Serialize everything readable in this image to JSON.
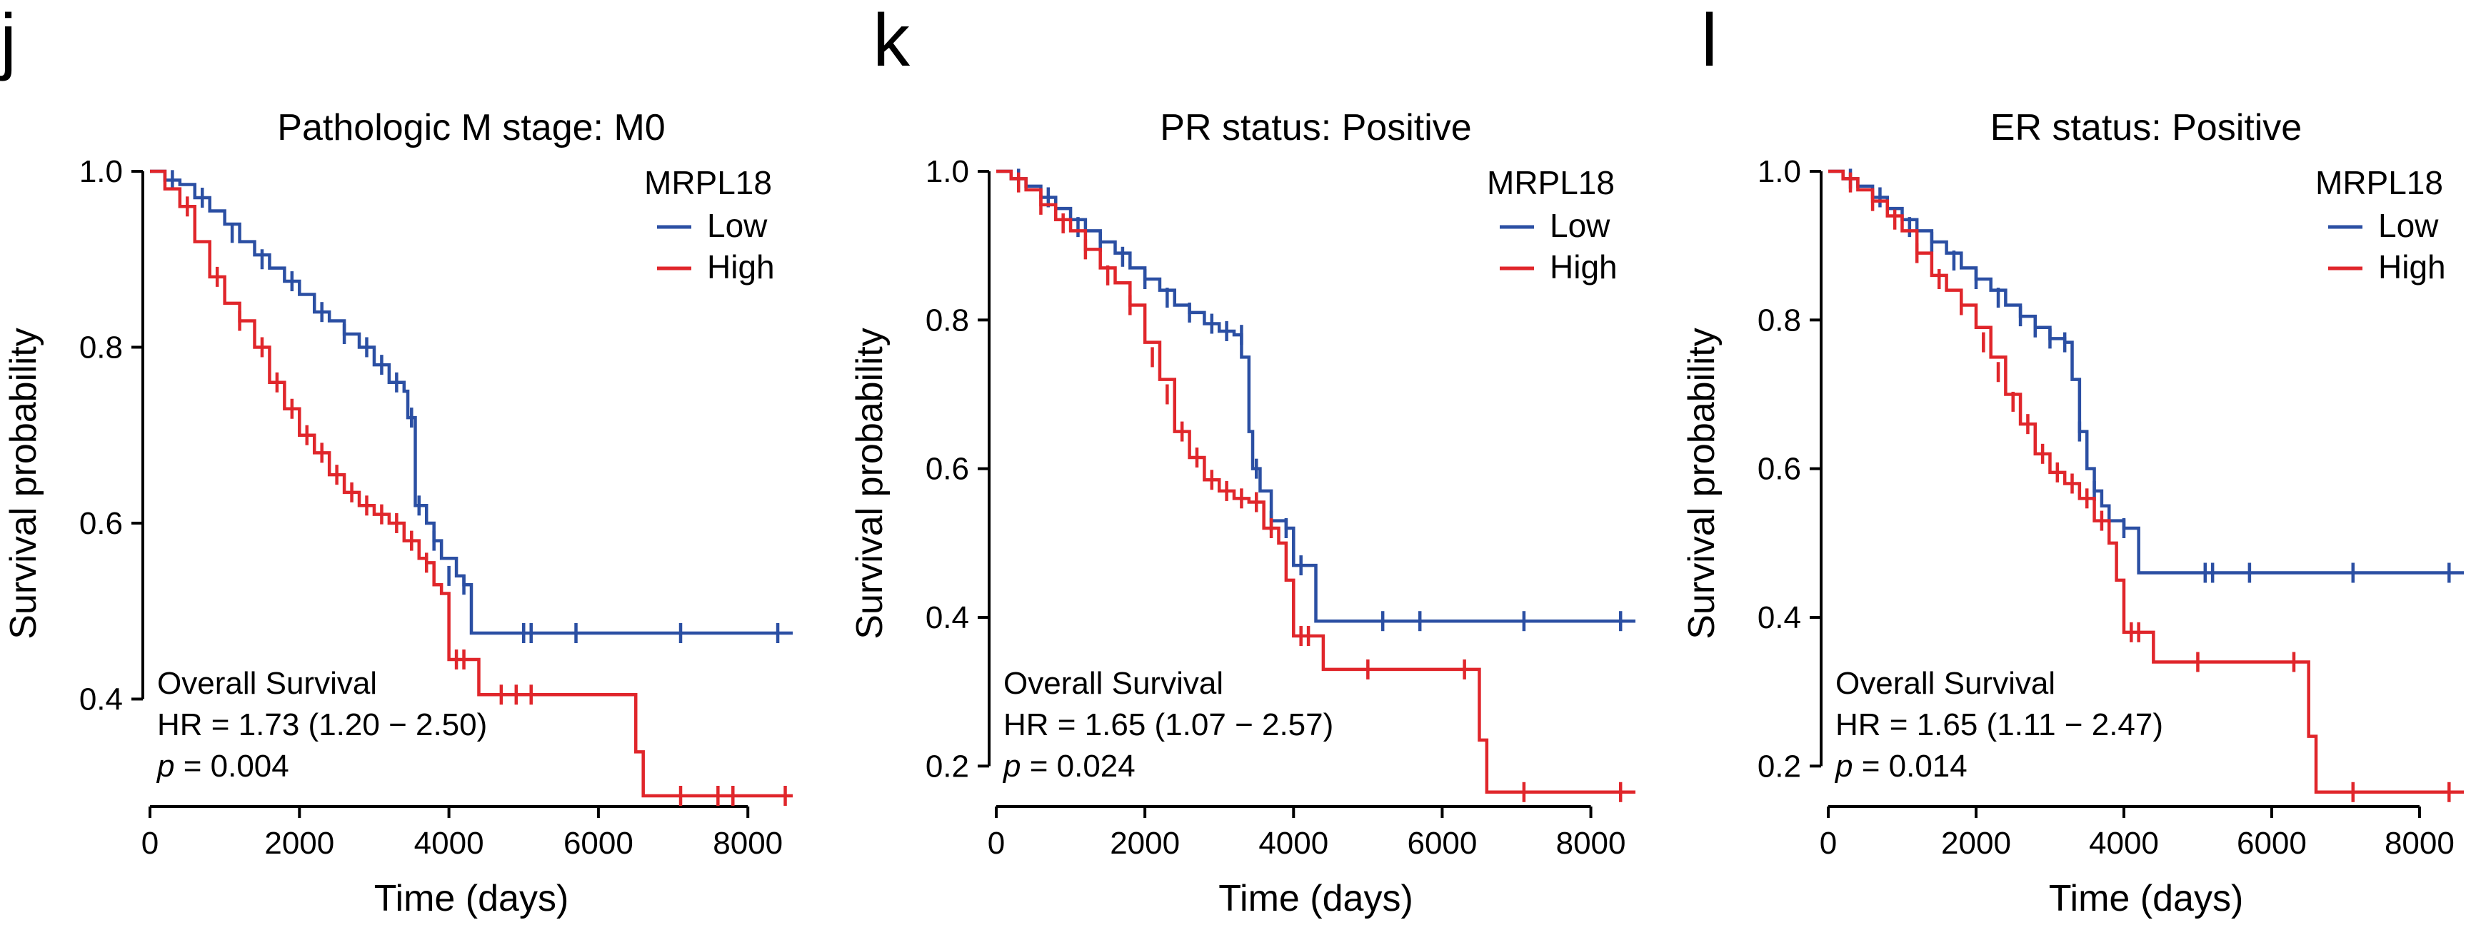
{
  "colors": {
    "low": "#2b4fa3",
    "high": "#e0262b"
  },
  "chart_data": [
    {
      "type": "line",
      "panel_letter": "j",
      "title": "Pathologic M stage: M0",
      "xlabel": "Time (days)",
      "ylabel": "Survival probability",
      "xlim": [
        0,
        8600
      ],
      "ylim": [
        0.29,
        1.0
      ],
      "xticks": [
        0,
        2000,
        4000,
        6000,
        8000
      ],
      "xtick_labels": [
        "0",
        "2000",
        "4000",
        "6000",
        "8000"
      ],
      "yticks": [
        0.4,
        0.6,
        0.8,
        1.0
      ],
      "ytick_labels": [
        "0.4",
        "0.6",
        "0.8",
        "1.0"
      ],
      "legend": {
        "title": "MRPL18",
        "entries": [
          "Low",
          "High"
        ],
        "position": "top-right"
      },
      "annotation": {
        "line1": "Overall Survival",
        "line2": "HR = 1.73 (1.20 − 2.50)",
        "p_symbol": "p",
        "p_rest": " = 0.004"
      },
      "series": [
        {
          "name": "Low",
          "x": [
            0,
            200,
            400,
            600,
            800,
            1000,
            1200,
            1400,
            1600,
            1800,
            2000,
            2200,
            2400,
            2600,
            2800,
            3000,
            3200,
            3400,
            3450,
            3550,
            3700,
            3800,
            3900,
            4100,
            4200,
            4300,
            4400,
            8600
          ],
          "y": [
            1.0,
            0.99,
            0.985,
            0.97,
            0.955,
            0.94,
            0.92,
            0.905,
            0.89,
            0.875,
            0.86,
            0.84,
            0.83,
            0.815,
            0.8,
            0.78,
            0.76,
            0.75,
            0.72,
            0.62,
            0.6,
            0.58,
            0.56,
            0.54,
            0.53,
            0.475,
            0.475,
            0.475
          ],
          "censor_x": [
            300,
            700,
            1100,
            1500,
            1900,
            2300,
            2600,
            2900,
            3100,
            3300,
            3500,
            3600,
            3800,
            4000,
            4200,
            5000,
            5100,
            5700,
            7100,
            8400
          ],
          "censor_y": [
            0.99,
            0.97,
            0.93,
            0.9,
            0.875,
            0.84,
            0.815,
            0.8,
            0.78,
            0.76,
            0.72,
            0.62,
            0.58,
            0.54,
            0.53,
            0.475,
            0.475,
            0.475,
            0.475,
            0.475
          ]
        },
        {
          "name": "High",
          "x": [
            0,
            200,
            400,
            600,
            800,
            1000,
            1200,
            1400,
            1600,
            1800,
            2000,
            2200,
            2400,
            2600,
            2800,
            3000,
            3200,
            3400,
            3600,
            3700,
            3800,
            3900,
            4000,
            4300,
            4400,
            6400,
            6500,
            6600,
            8600
          ],
          "y": [
            1.0,
            0.98,
            0.96,
            0.92,
            0.88,
            0.85,
            0.83,
            0.8,
            0.76,
            0.73,
            0.7,
            0.68,
            0.655,
            0.635,
            0.62,
            0.61,
            0.6,
            0.58,
            0.56,
            0.555,
            0.53,
            0.52,
            0.445,
            0.445,
            0.405,
            0.405,
            0.34,
            0.29,
            0.29
          ],
          "censor_x": [
            500,
            900,
            1200,
            1500,
            1700,
            1900,
            2100,
            2300,
            2500,
            2700,
            2900,
            3100,
            3300,
            3500,
            3700,
            4100,
            4200,
            4700,
            4900,
            5100,
            7100,
            7600,
            7800,
            8500
          ],
          "censor_y": [
            0.96,
            0.88,
            0.83,
            0.8,
            0.76,
            0.73,
            0.7,
            0.68,
            0.655,
            0.635,
            0.62,
            0.61,
            0.6,
            0.58,
            0.555,
            0.445,
            0.445,
            0.405,
            0.405,
            0.405,
            0.29,
            0.29,
            0.29,
            0.29
          ]
        }
      ]
    },
    {
      "type": "line",
      "panel_letter": "k",
      "title": "PR status: Positive",
      "xlabel": "Time (days)",
      "ylabel": "Survival probability",
      "xlim": [
        0,
        8600
      ],
      "ylim": [
        0.16,
        1.0
      ],
      "xticks": [
        0,
        2000,
        4000,
        6000,
        8000
      ],
      "xtick_labels": [
        "0",
        "2000",
        "4000",
        "6000",
        "8000"
      ],
      "yticks": [
        0.2,
        0.4,
        0.6,
        0.8,
        1.0
      ],
      "ytick_labels": [
        "0.2",
        "0.4",
        "0.6",
        "0.8",
        "1.0"
      ],
      "legend": {
        "title": "MRPL18",
        "entries": [
          "Low",
          "High"
        ],
        "position": "top-right"
      },
      "annotation": {
        "line1": "Overall Survival",
        "line2": "HR = 1.65 (1.07 − 2.57)",
        "p_symbol": "p",
        "p_rest": " = 0.024"
      },
      "series": [
        {
          "name": "Low",
          "x": [
            0,
            200,
            400,
            600,
            800,
            1000,
            1200,
            1400,
            1600,
            1800,
            2000,
            2200,
            2400,
            2600,
            2800,
            3000,
            3200,
            3300,
            3400,
            3450,
            3550,
            3700,
            3900,
            4000,
            4200,
            4300,
            8600
          ],
          "y": [
            1.0,
            0.99,
            0.98,
            0.965,
            0.95,
            0.935,
            0.92,
            0.905,
            0.89,
            0.87,
            0.855,
            0.84,
            0.82,
            0.81,
            0.795,
            0.785,
            0.78,
            0.75,
            0.65,
            0.6,
            0.57,
            0.53,
            0.52,
            0.47,
            0.47,
            0.395,
            0.395
          ],
          "censor_x": [
            300,
            700,
            1100,
            1400,
            1700,
            2000,
            2300,
            2600,
            2900,
            3100,
            3300,
            3500,
            3700,
            3900,
            4100,
            5200,
            5700,
            7100,
            8400
          ],
          "censor_y": [
            0.99,
            0.965,
            0.925,
            0.905,
            0.885,
            0.855,
            0.83,
            0.81,
            0.795,
            0.785,
            0.78,
            0.6,
            0.53,
            0.52,
            0.47,
            0.395,
            0.395,
            0.395,
            0.395
          ]
        },
        {
          "name": "High",
          "x": [
            0,
            200,
            400,
            600,
            800,
            1000,
            1200,
            1400,
            1600,
            1800,
            2000,
            2200,
            2400,
            2600,
            2800,
            3000,
            3200,
            3400,
            3600,
            3800,
            3900,
            4000,
            4300,
            4400,
            6400,
            6500,
            6600,
            8600
          ],
          "y": [
            1.0,
            0.99,
            0.975,
            0.955,
            0.935,
            0.92,
            0.895,
            0.87,
            0.85,
            0.82,
            0.77,
            0.72,
            0.65,
            0.615,
            0.585,
            0.57,
            0.56,
            0.555,
            0.52,
            0.5,
            0.45,
            0.375,
            0.375,
            0.33,
            0.33,
            0.235,
            0.165,
            0.165
          ],
          "censor_x": [
            300,
            600,
            900,
            1200,
            1500,
            1800,
            2100,
            2300,
            2500,
            2700,
            2900,
            3100,
            3300,
            3500,
            3700,
            4100,
            4200,
            5000,
            6300,
            7100,
            8400
          ],
          "censor_y": [
            0.985,
            0.955,
            0.93,
            0.895,
            0.86,
            0.82,
            0.75,
            0.7,
            0.65,
            0.615,
            0.585,
            0.57,
            0.56,
            0.555,
            0.52,
            0.375,
            0.375,
            0.33,
            0.33,
            0.165,
            0.165
          ]
        }
      ]
    },
    {
      "type": "line",
      "panel_letter": "l",
      "title": "ER status: Positive",
      "xlabel": "Time (days)",
      "ylabel": "Survival probability",
      "xlim": [
        0,
        8600
      ],
      "ylim": [
        0.16,
        1.0
      ],
      "xticks": [
        0,
        2000,
        4000,
        6000,
        8000
      ],
      "xtick_labels": [
        "0",
        "2000",
        "4000",
        "6000",
        "8000"
      ],
      "yticks": [
        0.2,
        0.4,
        0.6,
        0.8,
        1.0
      ],
      "ytick_labels": [
        "0.2",
        "0.4",
        "0.6",
        "0.8",
        "1.0"
      ],
      "legend": {
        "title": "MRPL18",
        "entries": [
          "Low",
          "High"
        ],
        "position": "top-right"
      },
      "annotation": {
        "line1": "Overall Survival",
        "line2": "HR = 1.65 (1.11 − 2.47)",
        "p_symbol": "p",
        "p_rest": " = 0.014"
      },
      "series": [
        {
          "name": "Low",
          "x": [
            0,
            200,
            400,
            600,
            800,
            1000,
            1200,
            1400,
            1600,
            1800,
            2000,
            2200,
            2400,
            2600,
            2800,
            3000,
            3200,
            3300,
            3400,
            3500,
            3600,
            3700,
            3800,
            4000,
            4200,
            8600
          ],
          "y": [
            1.0,
            0.99,
            0.98,
            0.965,
            0.95,
            0.935,
            0.92,
            0.905,
            0.89,
            0.87,
            0.855,
            0.84,
            0.82,
            0.805,
            0.79,
            0.775,
            0.77,
            0.72,
            0.65,
            0.6,
            0.57,
            0.55,
            0.53,
            0.52,
            0.46,
            0.46
          ],
          "censor_x": [
            300,
            700,
            1100,
            1400,
            1700,
            2000,
            2300,
            2600,
            2800,
            3000,
            3200,
            3400,
            3600,
            3800,
            4000,
            5100,
            5200,
            5700,
            7100,
            8400
          ],
          "censor_y": [
            0.99,
            0.965,
            0.925,
            0.905,
            0.88,
            0.855,
            0.83,
            0.805,
            0.79,
            0.775,
            0.77,
            0.65,
            0.57,
            0.53,
            0.52,
            0.46,
            0.46,
            0.46,
            0.46,
            0.46
          ]
        },
        {
          "name": "High",
          "x": [
            0,
            200,
            400,
            600,
            800,
            1000,
            1200,
            1400,
            1600,
            1800,
            2000,
            2200,
            2400,
            2600,
            2800,
            3000,
            3200,
            3400,
            3600,
            3800,
            3900,
            4000,
            4300,
            4400,
            6400,
            6500,
            6600,
            8600
          ],
          "y": [
            1.0,
            0.99,
            0.975,
            0.96,
            0.94,
            0.92,
            0.89,
            0.86,
            0.84,
            0.82,
            0.79,
            0.75,
            0.7,
            0.66,
            0.62,
            0.595,
            0.58,
            0.56,
            0.53,
            0.5,
            0.45,
            0.38,
            0.38,
            0.34,
            0.34,
            0.24,
            0.165,
            0.165
          ],
          "censor_x": [
            300,
            600,
            900,
            1200,
            1500,
            1800,
            2100,
            2300,
            2500,
            2700,
            2900,
            3100,
            3300,
            3500,
            3700,
            4100,
            4200,
            5000,
            6300,
            7100,
            8400
          ],
          "censor_y": [
            0.985,
            0.96,
            0.935,
            0.89,
            0.855,
            0.82,
            0.77,
            0.73,
            0.69,
            0.66,
            0.62,
            0.595,
            0.58,
            0.56,
            0.53,
            0.38,
            0.38,
            0.34,
            0.34,
            0.165,
            0.165
          ]
        }
      ]
    }
  ]
}
